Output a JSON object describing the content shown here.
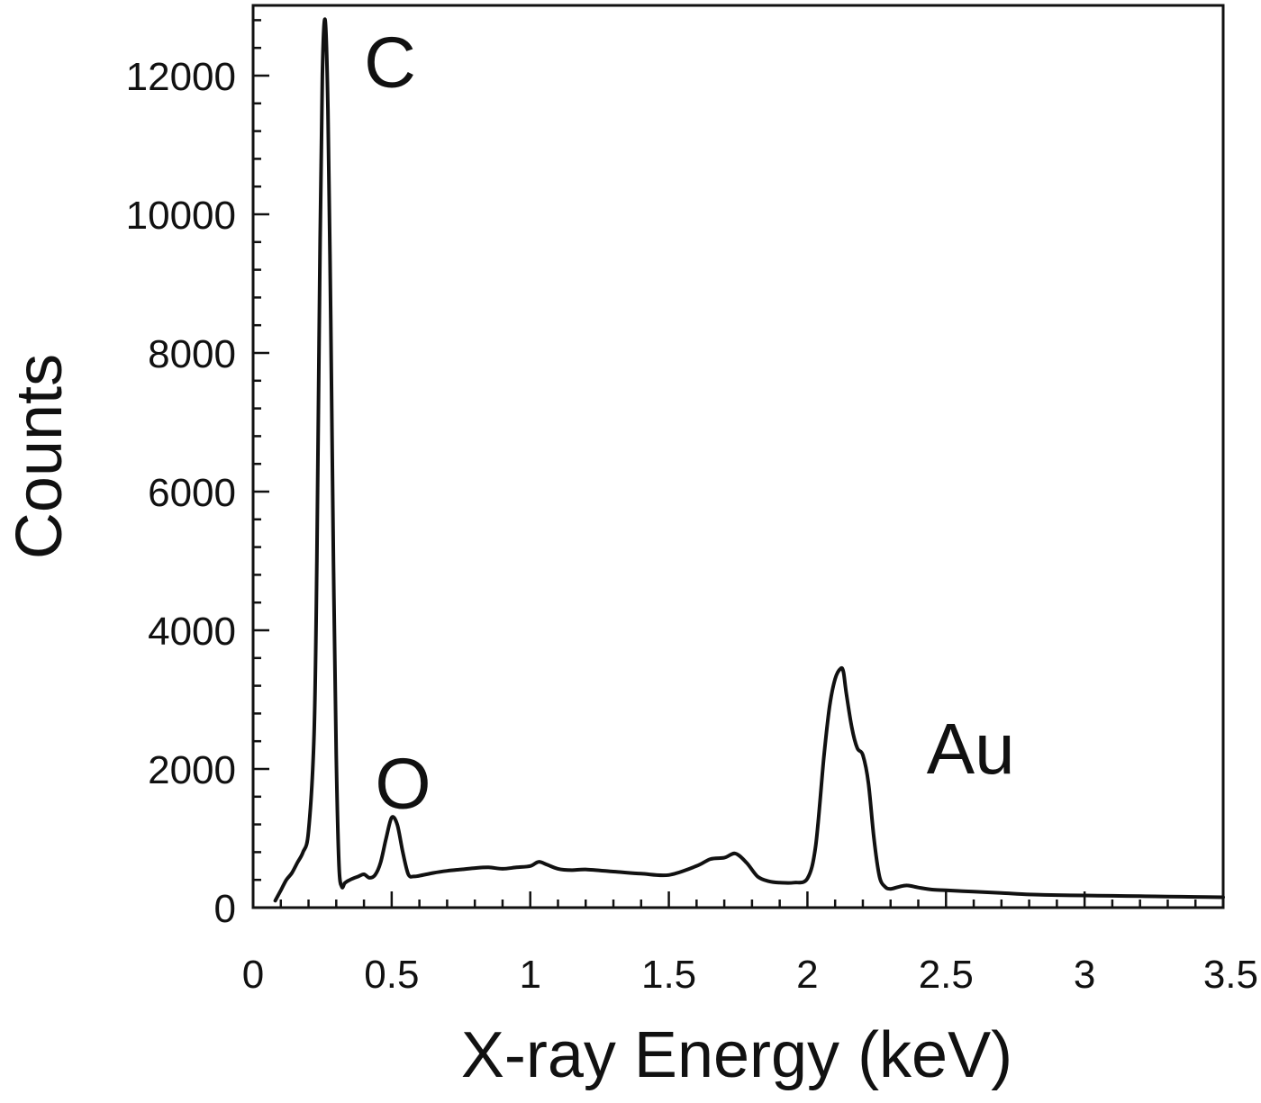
{
  "chart_data": {
    "type": "line",
    "title": "",
    "xlabel": "X-ray Energy (keV)",
    "ylabel": "Counts",
    "xlim": [
      0,
      3.5
    ],
    "ylim": [
      0,
      13000
    ],
    "grid": false,
    "x_ticks": [
      0,
      0.5,
      1,
      1.5,
      2,
      2.5,
      3,
      3.5
    ],
    "x_tick_labels": [
      "0",
      "0.5",
      "1",
      "1.5",
      "2",
      "2.5",
      "3",
      "3.5"
    ],
    "y_ticks": [
      0,
      2000,
      4000,
      6000,
      8000,
      10000,
      12000
    ],
    "y_tick_labels": [
      "0",
      "2000",
      "4000",
      "6000",
      "8000",
      "10000",
      "12000"
    ],
    "x_minor_step": 0.1,
    "y_minor_step": 400,
    "annotations": [
      {
        "text": "C",
        "x": 0.4,
        "y": 12200
      },
      {
        "text": "O",
        "x": 0.44,
        "y": 1800
      },
      {
        "text": "Au",
        "x": 2.43,
        "y": 2300
      }
    ],
    "series": [
      {
        "x": [
          0.08,
          0.1,
          0.12,
          0.14,
          0.16,
          0.18,
          0.2,
          0.22,
          0.23,
          0.24,
          0.25,
          0.26,
          0.27,
          0.28,
          0.29,
          0.3,
          0.31,
          0.32,
          0.33,
          0.34,
          0.36,
          0.38,
          0.4,
          0.42,
          0.44,
          0.46,
          0.48,
          0.5,
          0.52,
          0.54,
          0.56,
          0.58,
          0.6,
          0.65,
          0.7,
          0.75,
          0.8,
          0.85,
          0.9,
          0.95,
          1.0,
          1.03,
          1.06,
          1.1,
          1.15,
          1.2,
          1.3,
          1.4,
          1.5,
          1.6,
          1.65,
          1.7,
          1.74,
          1.78,
          1.82,
          1.86,
          1.9,
          1.95,
          2.0,
          2.03,
          2.06,
          2.08,
          2.1,
          2.12,
          2.13,
          2.14,
          2.16,
          2.18,
          2.2,
          2.22,
          2.24,
          2.26,
          2.28,
          2.3,
          2.33,
          2.36,
          2.4,
          2.45,
          2.5,
          2.6,
          2.7,
          2.8,
          2.9,
          3.0,
          3.1,
          3.2,
          3.3,
          3.4,
          3.5
        ],
        "y": [
          100,
          250,
          400,
          500,
          650,
          800,
          1100,
          2500,
          5000,
          9000,
          12000,
          12800,
          11500,
          8500,
          5000,
          2200,
          600,
          300,
          350,
          380,
          420,
          450,
          480,
          430,
          470,
          650,
          1000,
          1300,
          1200,
          800,
          480,
          450,
          460,
          500,
          530,
          550,
          570,
          580,
          560,
          580,
          600,
          660,
          620,
          560,
          540,
          550,
          520,
          490,
          470,
          600,
          700,
          720,
          780,
          650,
          450,
          380,
          360,
          360,
          420,
          900,
          2200,
          2900,
          3300,
          3450,
          3400,
          3100,
          2600,
          2300,
          2200,
          1800,
          1000,
          450,
          300,
          270,
          300,
          320,
          290,
          260,
          250,
          230,
          210,
          190,
          180,
          175,
          170,
          165,
          160,
          155,
          150
        ]
      }
    ]
  }
}
